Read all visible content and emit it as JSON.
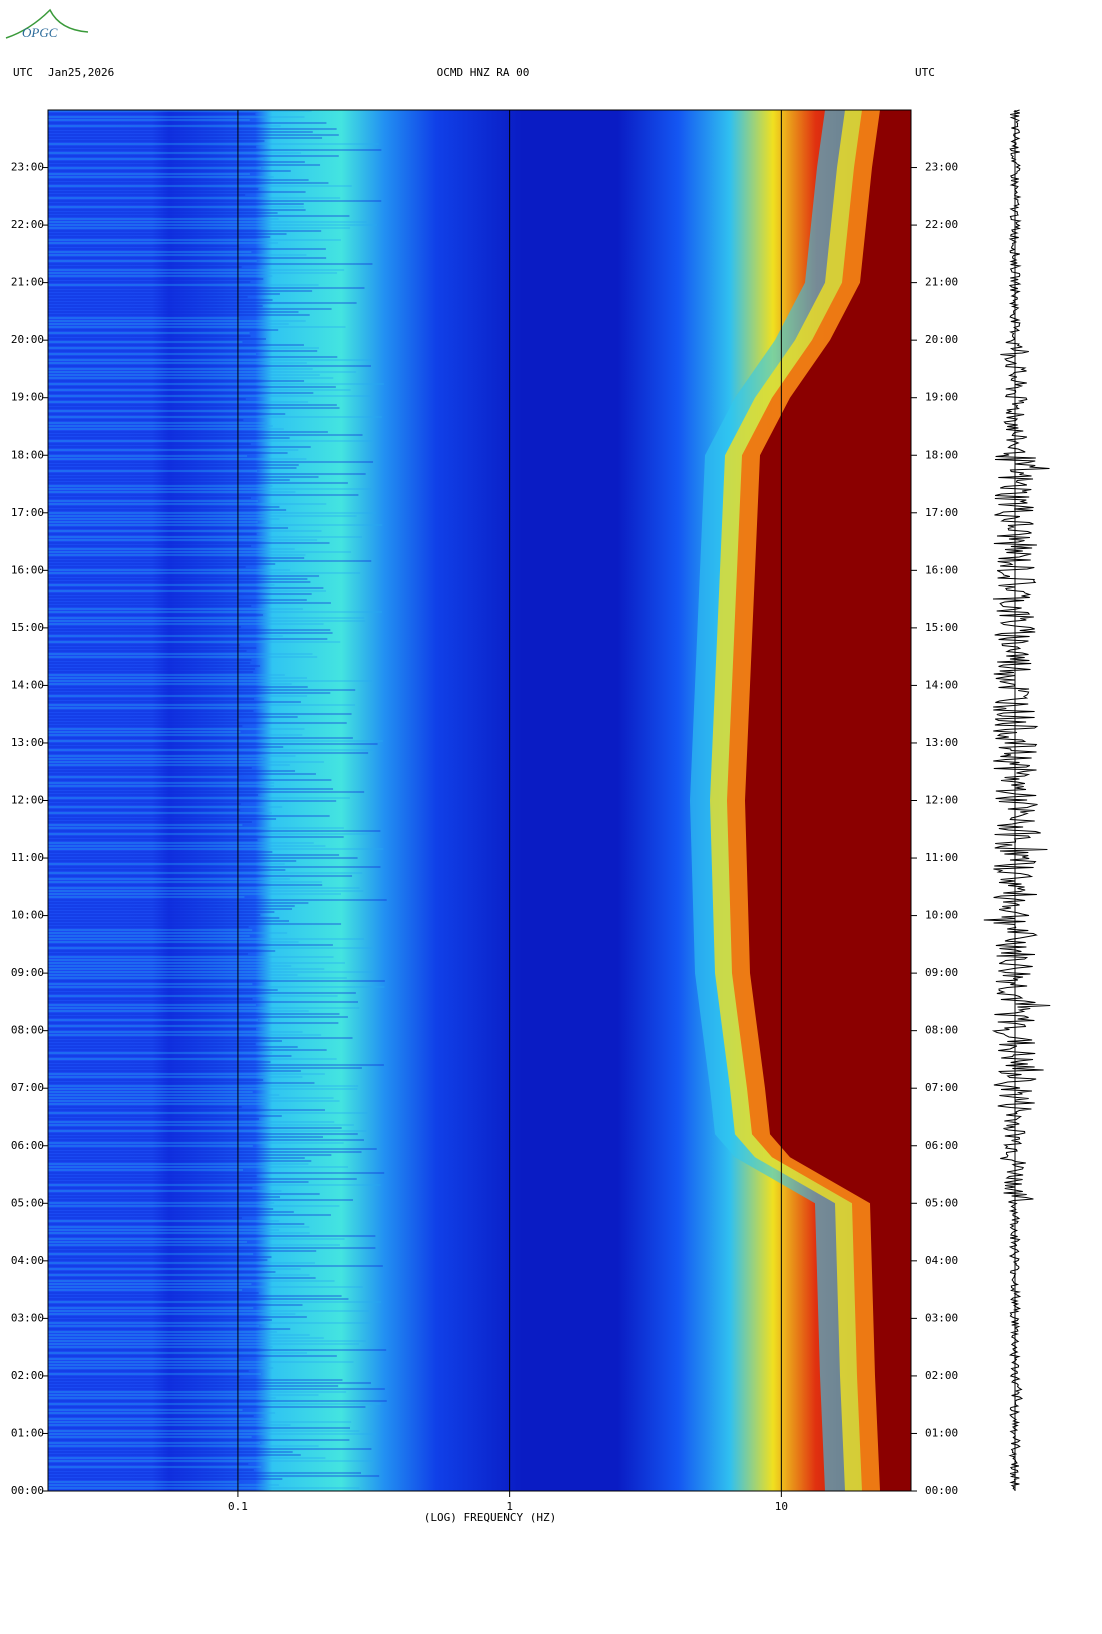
{
  "logo": "OPGC",
  "chart_data": {
    "type": "spectrogram",
    "left_label": "UTC",
    "date": "Jan25,2026",
    "title": "OCMD HNZ RA 00",
    "right_label": "UTC",
    "x_label": "(LOG) FREQUENCY (HZ)",
    "log_x": true,
    "xlim": [
      0.02,
      30
    ],
    "xticks": [
      0.1,
      1,
      10
    ],
    "ylim": [
      0,
      24
    ],
    "yticks": [
      {
        "value": 0,
        "label": "00:00"
      },
      {
        "value": 1,
        "label": "01:00"
      },
      {
        "value": 2,
        "label": "02:00"
      },
      {
        "value": 3,
        "label": "03:00"
      },
      {
        "value": 4,
        "label": "04:00"
      },
      {
        "value": 5,
        "label": "05:00"
      },
      {
        "value": 6,
        "label": "06:00"
      },
      {
        "value": 7,
        "label": "07:00"
      },
      {
        "value": 8,
        "label": "08:00"
      },
      {
        "value": 9,
        "label": "09:00"
      },
      {
        "value": 10,
        "label": "10:00"
      },
      {
        "value": 11,
        "label": "11:00"
      },
      {
        "value": 12,
        "label": "12:00"
      },
      {
        "value": 13,
        "label": "13:00"
      },
      {
        "value": 14,
        "label": "14:00"
      },
      {
        "value": 15,
        "label": "15:00"
      },
      {
        "value": 16,
        "label": "16:00"
      },
      {
        "value": 17,
        "label": "17:00"
      },
      {
        "value": 18,
        "label": "18:00"
      },
      {
        "value": 19,
        "label": "19:00"
      },
      {
        "value": 20,
        "label": "20:00"
      },
      {
        "value": 21,
        "label": "21:00"
      },
      {
        "value": 22,
        "label": "22:00"
      },
      {
        "value": 23,
        "label": "23:00"
      }
    ]
  }
}
